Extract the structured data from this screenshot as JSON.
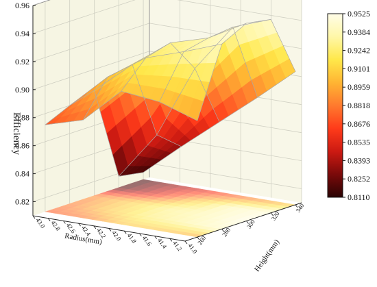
{
  "chart_data": {
    "type": "surface3d",
    "zlabel": "Efficiency",
    "xlabel": "Radius(mm)",
    "ylabel": "Height(mm)",
    "z_ticks": [
      "0.82",
      "0.84",
      "0.86",
      "0.88",
      "0.90",
      "0.92",
      "0.94",
      "0.96"
    ],
    "zlim": [
      0.81,
      0.96
    ],
    "x_ticks": [
      "41.0",
      "41.2",
      "41.4",
      "41.6",
      "41.8",
      "42.0",
      "42.2",
      "42.4",
      "42.6",
      "42.8",
      "43.0"
    ],
    "xlim": [
      41.0,
      43.0
    ],
    "y_ticks": [
      "260",
      "280",
      "300",
      "320",
      "340"
    ],
    "ylim": [
      250,
      345
    ],
    "radius": [
      41.0,
      41.5,
      42.0,
      42.5,
      43.0
    ],
    "height": [
      260,
      280,
      300,
      320,
      340
    ],
    "efficiency": [
      [
        0.893,
        0.942,
        0.951,
        0.948,
        0.905
      ],
      [
        0.902,
        0.932,
        0.936,
        0.938,
        0.882
      ],
      [
        0.905,
        0.923,
        0.928,
        0.904,
        0.86
      ],
      [
        0.88,
        0.905,
        0.908,
        0.852,
        0.838
      ],
      [
        0.872,
        0.88,
        0.885,
        0.818,
        0.815
      ]
    ],
    "colorbar_ticks": [
      "0.9525",
      "0.9384",
      "0.9242",
      "0.9101",
      "0.8959",
      "0.8818",
      "0.8676",
      "0.8535",
      "0.8393",
      "0.8252",
      "0.8110"
    ],
    "colorbar_range": [
      0.811,
      0.9525
    ],
    "colormap": [
      "#2a0303",
      "#7a0a0a",
      "#cc1a12",
      "#ff3b1a",
      "#ff7a2e",
      "#ffb533",
      "#ffe84a",
      "#fff7a8",
      "#fffde8"
    ],
    "grid": true,
    "legend": "colorbar-right"
  }
}
